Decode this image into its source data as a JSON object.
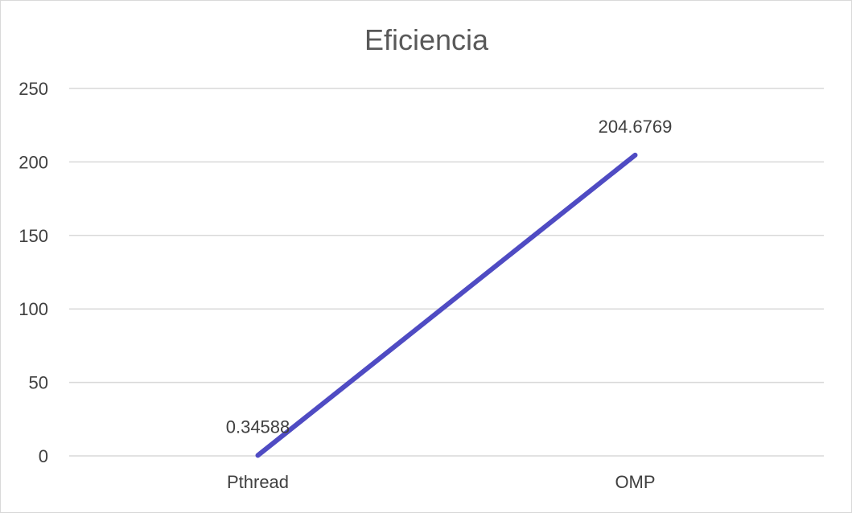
{
  "chart_data": {
    "type": "line",
    "title": "Eficiencia",
    "xlabel": "",
    "ylabel": "",
    "categories": [
      "Pthread",
      "OMP"
    ],
    "series": [
      {
        "values": [
          0.34588,
          204.6769
        ],
        "data_labels": [
          "0.34588",
          "204.6769"
        ],
        "color": "#4f4bc3"
      }
    ],
    "ylim": [
      0,
      250
    ],
    "yticks": [
      0,
      50,
      100,
      150,
      200,
      250
    ],
    "ytick_labels": [
      "0",
      "50",
      "100",
      "150",
      "200",
      "250"
    ],
    "grid": true,
    "legend": "none"
  },
  "colors": {
    "series": "#4f4bc3",
    "grid": "#d9d9d9",
    "text": "#404040",
    "title": "#595959"
  }
}
